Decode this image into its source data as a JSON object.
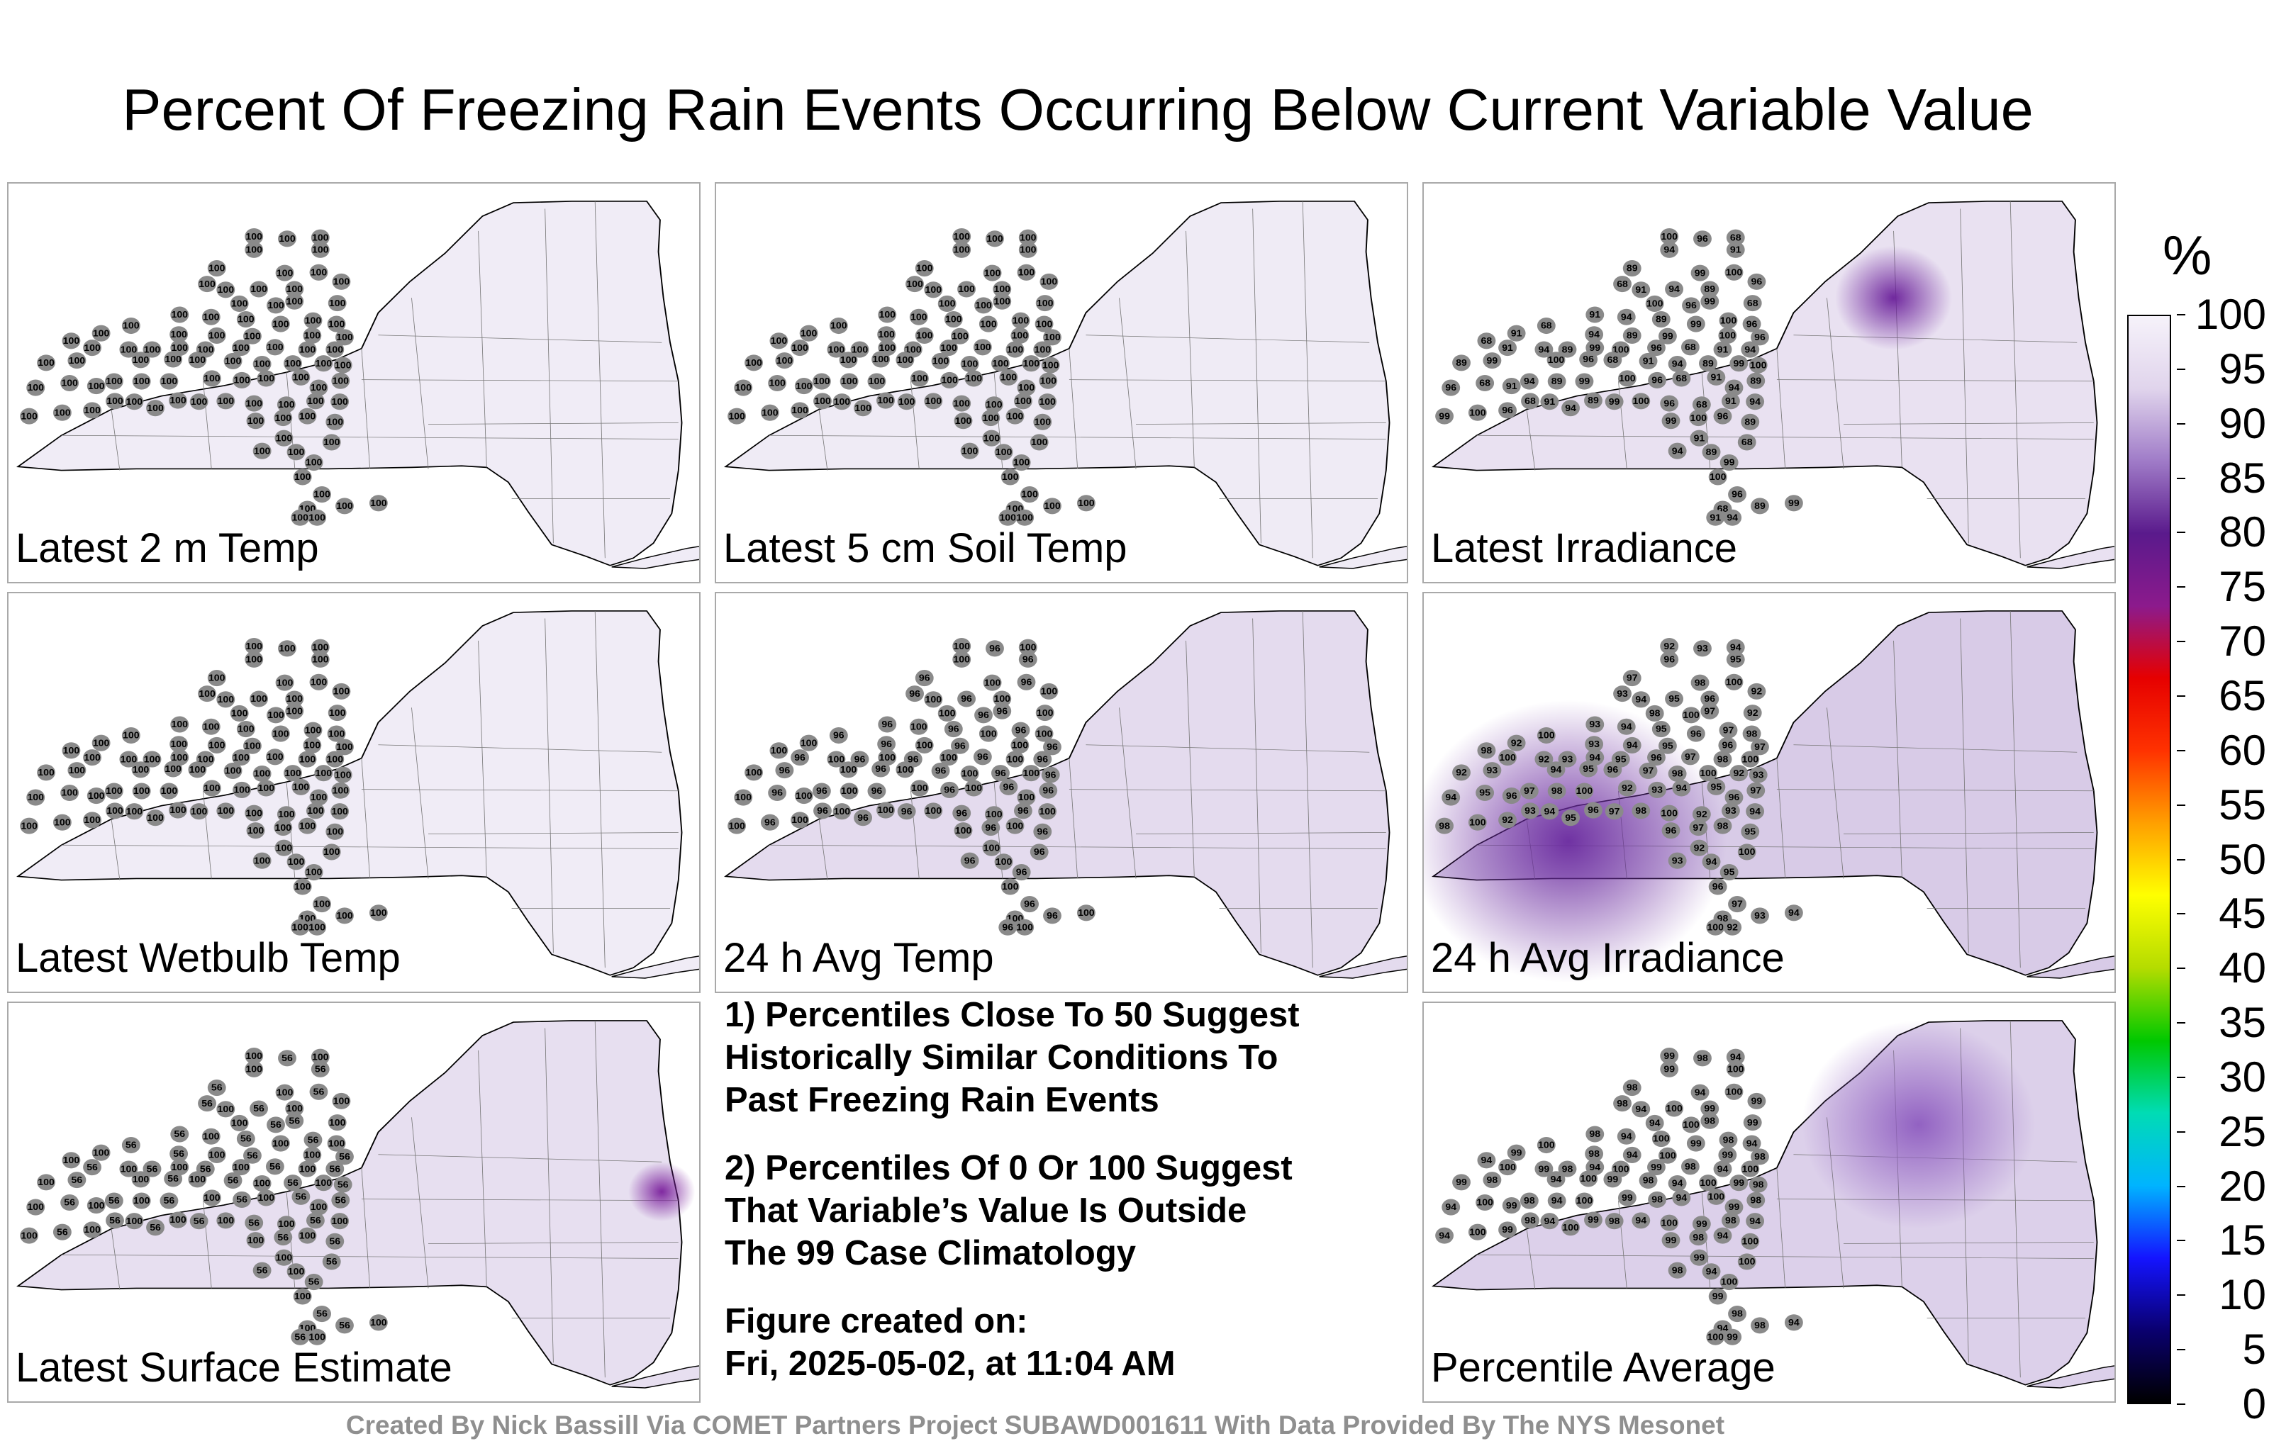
{
  "title": "Percent Of Freezing Rain Events Occurring Below Current Variable Value",
  "panels": [
    {
      "label": "Latest 2 m Temp",
      "fill": "#f0ecf6",
      "hotspots": [],
      "station_values": [
        "100"
      ]
    },
    {
      "label": "Latest 5 cm Soil Temp",
      "fill": "#efebf5",
      "hotspots": [],
      "station_values": [
        "100"
      ]
    },
    {
      "label": "Latest Irradiance",
      "fill": "#e9e1f1",
      "hotspots": [
        {
          "value": 68,
          "color": "#6a1f9a"
        }
      ],
      "station_values": [
        "100",
        "96",
        "68",
        "91",
        "94",
        "89",
        "99"
      ]
    },
    {
      "label": "Latest Wetbulb Temp",
      "fill": "#f0ecf6",
      "hotspots": [],
      "station_values": [
        "100"
      ]
    },
    {
      "label": "24 h Avg Temp",
      "fill": "#e4dbee",
      "hotspots": [],
      "station_values": [
        "100",
        "96"
      ]
    },
    {
      "label": "24 h Avg Irradiance",
      "fill": "#d8cbe7",
      "hotspots": [
        {
          "value": 92,
          "color": "#6a2a9f"
        }
      ],
      "station_values": [
        "92",
        "93",
        "94",
        "95",
        "96",
        "97",
        "98",
        "100"
      ]
    },
    {
      "label": "Latest Surface Estimate",
      "fill": "#e7dff0",
      "hotspots": [
        {
          "value": 56,
          "color": "#7a1f9c"
        }
      ],
      "station_values": [
        "100",
        "56"
      ]
    },
    {
      "label": "Percentile Average",
      "fill": "#dcd0ea",
      "hotspots": [
        {
          "value": 94,
          "color": "#8e5cc0"
        }
      ],
      "station_values": [
        "99",
        "98",
        "94",
        "100"
      ]
    }
  ],
  "notes": {
    "note1": "1) Percentiles Close To 50 Suggest\nHistorically Similar Conditions To\nPast Freezing Rain Events",
    "note2": "2) Percentiles Of 0 Or 100 Suggest\nThat Variable’s Value Is Outside\nThe 99 Case Climatology",
    "created_label": "Figure created on:",
    "created_date": "Fri, 2025-05-02, at 11:04 AM"
  },
  "credit": "Created By Nick Bassill Via COMET Partners Project SUBAWD001611 With Data Provided By The NYS Mesonet",
  "colorbar": {
    "unit": "%",
    "min": 0,
    "max": 100,
    "ticks": [
      "100",
      "95",
      "90",
      "85",
      "80",
      "75",
      "70",
      "65",
      "60",
      "55",
      "50",
      "45",
      "40",
      "35",
      "30",
      "25",
      "20",
      "15",
      "10",
      "5",
      "0"
    ],
    "stops": [
      "#000000",
      "#0a0070",
      "#1414ff",
      "#00b4ff",
      "#00dcb4",
      "#00c800",
      "#b4dc00",
      "#ffff00",
      "#ffa000",
      "#ff3200",
      "#e60000",
      "#8c1a8c",
      "#5a1a8c",
      "#a07cc8",
      "#e0d4ec",
      "#f6f2fa"
    ]
  }
}
